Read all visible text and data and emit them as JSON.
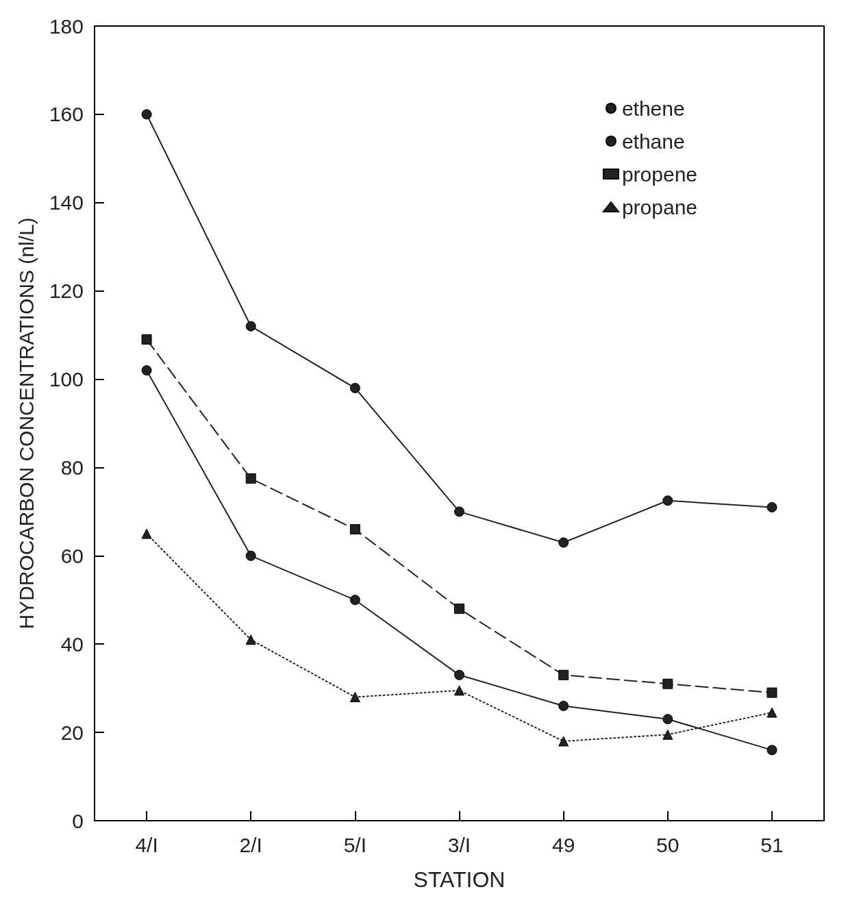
{
  "chart_data": {
    "type": "line",
    "xlabel": "STATION",
    "ylabel": "HYDROCARBON CONCENTRATIONS (nl/L)",
    "categories": [
      "4/I",
      "2/I",
      "5/I",
      "3/I",
      "49",
      "50",
      "51"
    ],
    "series": [
      {
        "name": "ethene",
        "color": "#222222",
        "marker": "circle",
        "line_style": "solid",
        "values": [
          160,
          112,
          98,
          70,
          63,
          72.5,
          71
        ]
      },
      {
        "name": "ethane",
        "color": "#222222",
        "marker": "circle",
        "line_style": "solid",
        "values": [
          102,
          60,
          50,
          33,
          26,
          23,
          16
        ]
      },
      {
        "name": "propene",
        "color": "#222222",
        "marker": "square",
        "line_style": "dashed",
        "values": [
          109,
          77.5,
          66,
          48,
          33,
          31,
          29
        ]
      },
      {
        "name": "propane",
        "color": "#222222",
        "marker": "triangle",
        "line_style": "dotted",
        "values": [
          65,
          41,
          28,
          29.5,
          18,
          19.5,
          24.5
        ]
      }
    ],
    "ylim": [
      0,
      180
    ],
    "yticks": [
      0,
      20,
      40,
      60,
      80,
      100,
      120,
      140,
      160,
      180
    ],
    "grid": false,
    "legend": "top right"
  }
}
